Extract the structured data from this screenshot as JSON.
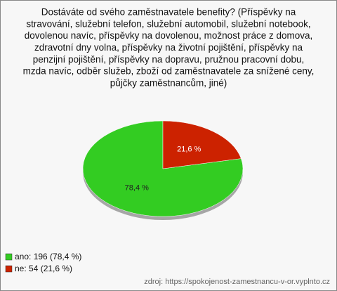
{
  "chart_data": {
    "type": "pie",
    "title": [
      "Dostáváte od svého zaměstnavatele benefity? (Příspěvky na",
      "stravování, služební telefon, služební automobil, služební notebook,",
      "dovolenou navíc, příspěvky na dovolenou, možnost práce z domova,",
      "zdravotní dny volna, příspěvky na životní pojištění, příspěvky na",
      "penzijní pojištění, příspěvky na dopravu, pružnou pracovní dobu,",
      "mzda navíc, odběr služeb, zboží od zaměstnavatele za snížené ceny,",
      "půjčky zaměstnancům, jiné)"
    ],
    "categories": [
      "ano: 196 (78,4 %)",
      "ne: 54 (21,6 %)"
    ],
    "values": [
      78.4,
      21.6
    ],
    "value_labels": [
      "78,4 %",
      "21,6 %"
    ],
    "colors": [
      "#33cc22",
      "#cc2200"
    ],
    "label_colors": [
      "#222222",
      "#ffffff"
    ],
    "source": "zdroj: https://spokojenost-zamestnancu-v-or.vyplnto.cz"
  }
}
